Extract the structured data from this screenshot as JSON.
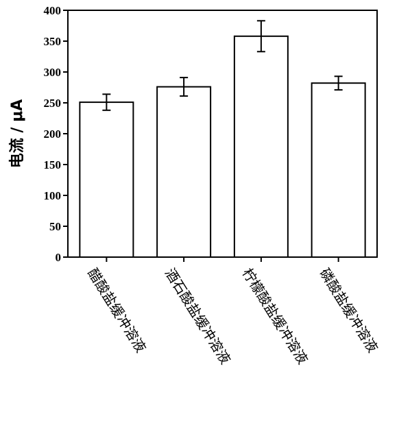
{
  "chart_data": {
    "type": "bar",
    "title": "",
    "xlabel": "",
    "ylabel": "电流 / μA",
    "ylim": [
      0,
      400
    ],
    "yticks": [
      0,
      50,
      100,
      150,
      200,
      250,
      300,
      350,
      400
    ],
    "grid": false,
    "categories": [
      "醋酸盐缓冲溶液",
      "酒石酸盐缓冲溶液",
      "柠檬酸盐缓冲溶液",
      "磷酸盐缓冲溶液"
    ],
    "values": [
      251,
      276,
      358,
      282
    ],
    "errors": [
      13,
      15,
      25,
      11
    ],
    "bar_fill": "#ffffff",
    "bar_stroke": "#000000"
  }
}
